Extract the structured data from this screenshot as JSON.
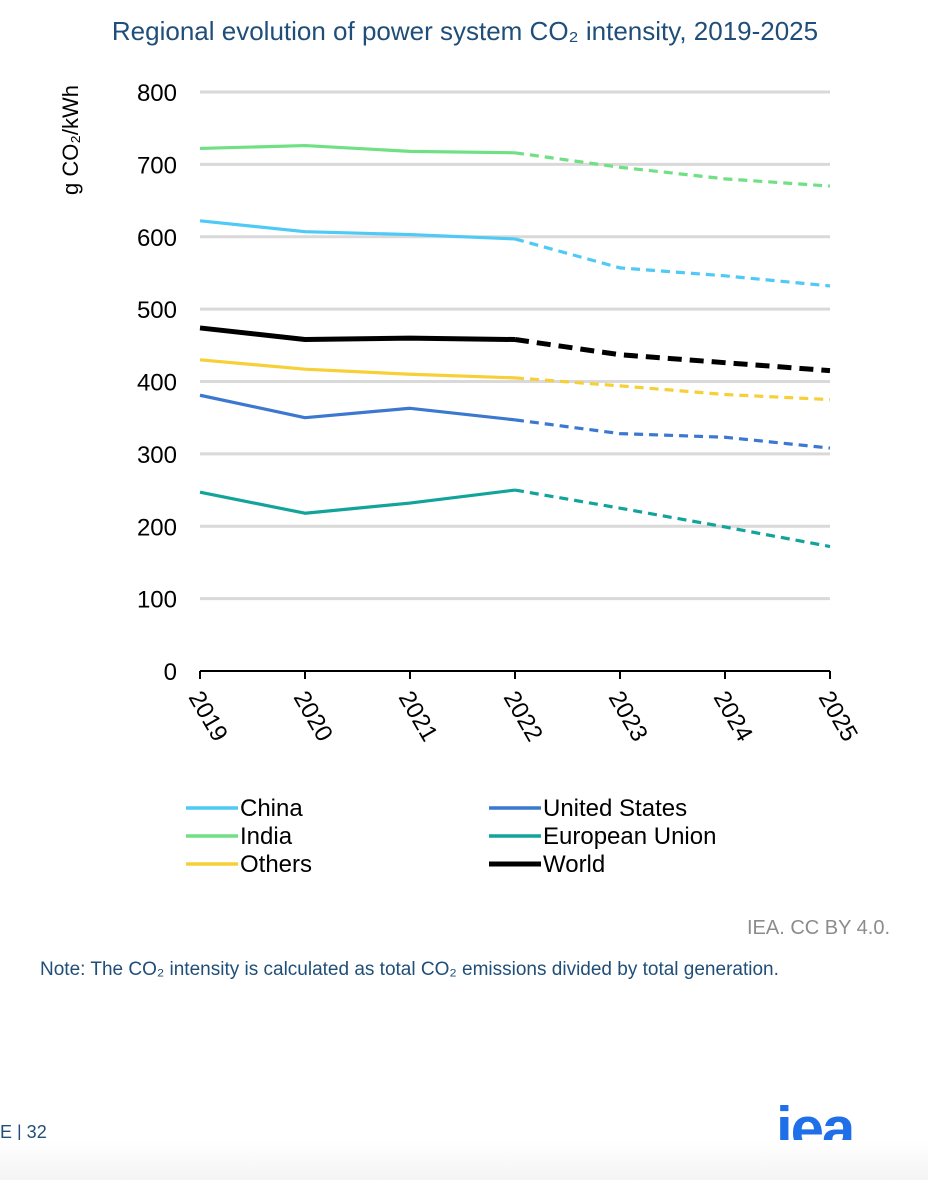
{
  "chart_data": {
    "type": "line",
    "title": "Regional evolution of power system CO₂ intensity, 2019-2025",
    "ylabel": "g CO₂/kWh",
    "xlabel": "",
    "categories": [
      "2019",
      "2020",
      "2021",
      "2022",
      "2023",
      "2024",
      "2025"
    ],
    "ylim": [
      0,
      800
    ],
    "yticks": [
      0,
      100,
      200,
      300,
      400,
      500,
      600,
      700,
      800
    ],
    "projection_start": "2022",
    "grid": true,
    "legend_position": "bottom",
    "series": [
      {
        "name": "China",
        "color": "#4fc9f5",
        "values": [
          622,
          607,
          603,
          597,
          557,
          546,
          532
        ]
      },
      {
        "name": "United States",
        "color": "#3c78cf",
        "values": [
          381,
          350,
          363,
          347,
          328,
          323,
          308
        ]
      },
      {
        "name": "India",
        "color": "#6fe083",
        "values": [
          722,
          726,
          718,
          716,
          696,
          680,
          670
        ]
      },
      {
        "name": "European Union",
        "color": "#12a39a",
        "values": [
          247,
          218,
          232,
          250,
          225,
          199,
          172
        ]
      },
      {
        "name": "Others",
        "color": "#f7cf37",
        "values": [
          430,
          417,
          410,
          405,
          394,
          382,
          375
        ]
      },
      {
        "name": "World",
        "color": "#000000",
        "values": [
          474,
          458,
          460,
          458,
          437,
          426,
          415
        ]
      }
    ]
  },
  "footer": {
    "credit": "IEA. CC BY 4.0.",
    "note": "Note: The CO₂ intensity is calculated as total CO₂ emissions divided by total generation.",
    "page": "E | 32",
    "logo_text": "iea",
    "logo_color": "#1e6fe8"
  }
}
